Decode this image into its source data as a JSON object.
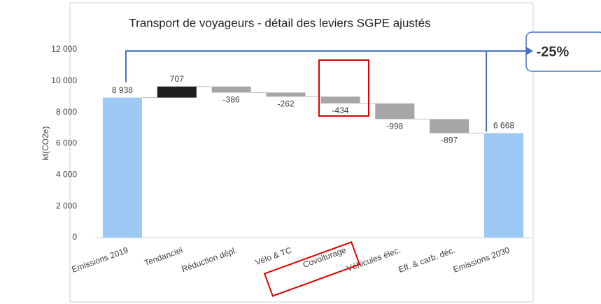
{
  "chart_data": {
    "type": "waterfall",
    "title": "Transport de voyageurs - détail des leviers SGPE ajustés",
    "y_label": "kt(CO2e)",
    "annotation": "-25%",
    "categories": [
      "Emissions 2019",
      "Tendanciel",
      "Réduction dépl.",
      "Vélo & TC",
      "Covoiturage",
      "Véhicules élec.",
      "Eff. & carb. déc.",
      "Emissions 2030"
    ],
    "values": [
      8938,
      707,
      -386,
      -262,
      -434,
      -998,
      -897,
      6668
    ],
    "value_labels": [
      "8 938",
      "707",
      "-386",
      "-262",
      "-434",
      "-998",
      "-897",
      "6 668"
    ],
    "measure": [
      "absolute",
      "relative",
      "relative",
      "relative",
      "relative",
      "relative",
      "relative",
      "absolute"
    ],
    "colors": {
      "total": "#9dc9f5",
      "increase": "#1f1f1f",
      "decrease": "#a6a6a6"
    },
    "ylim": [
      0,
      12000
    ],
    "yticks": [
      0,
      {
        "value": 2000,
        "label": "2 000"
      },
      {
        "value": 4000,
        "label": "4 000"
      },
      {
        "value": 6000,
        "label": "6 000"
      },
      {
        "value": 8000,
        "label": "8 000"
      },
      {
        "value": 10000,
        "label": "10 000"
      },
      {
        "value": 12000,
        "label": "12 000"
      }
    ],
    "grid": false
  }
}
